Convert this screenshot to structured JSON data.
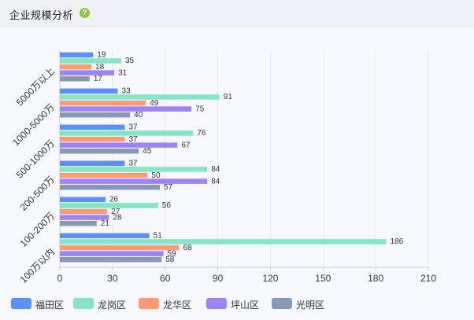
{
  "header": {
    "title": "企业规模分析",
    "help_icon": "question-circle-icon"
  },
  "chart_data": {
    "type": "bar",
    "orientation": "horizontal",
    "categories": [
      "5000万以上",
      "1000-5000万",
      "500-1000万",
      "200-500万",
      "100-200万",
      "100万以内"
    ],
    "series": [
      {
        "name": "福田区",
        "color": "#5b8ff9",
        "values": [
          19,
          33,
          37,
          37,
          26,
          51
        ]
      },
      {
        "name": "龙岗区",
        "color": "#85e6c5",
        "values": [
          35,
          91,
          76,
          84,
          56,
          186
        ]
      },
      {
        "name": "龙华区",
        "color": "#fb9b75",
        "values": [
          18,
          49,
          37,
          50,
          27,
          68
        ]
      },
      {
        "name": "坪山区",
        "color": "#9d82f8",
        "values": [
          31,
          75,
          67,
          84,
          28,
          59
        ]
      },
      {
        "name": "光明区",
        "color": "#8799b8",
        "values": [
          17,
          40,
          45,
          57,
          21,
          58
        ]
      }
    ],
    "xlim": [
      0,
      210
    ],
    "xticks": [
      0,
      30,
      60,
      90,
      120,
      150,
      180,
      210
    ],
    "grid": true,
    "legend": "bottom-left"
  }
}
